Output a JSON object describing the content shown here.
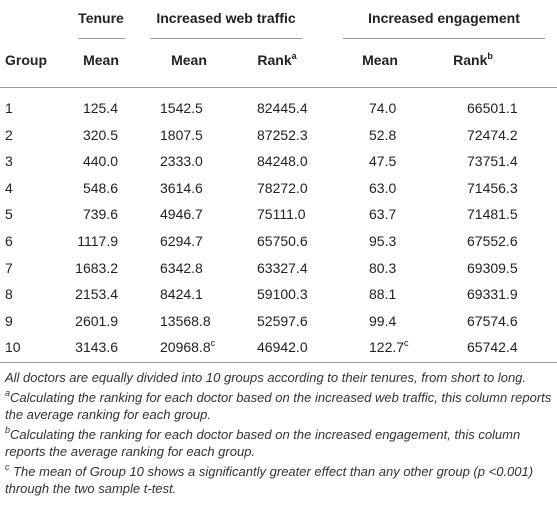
{
  "table": {
    "header_groups": [
      "Tenure",
      "Increased web traffic",
      "Increased engagement"
    ],
    "columns": [
      {
        "label": "Group"
      },
      {
        "label": "Mean"
      },
      {
        "label": "Mean"
      },
      {
        "label": "Rank",
        "sup": "a"
      },
      {
        "label": "Mean"
      },
      {
        "label": "Rank",
        "sup": "b"
      }
    ],
    "rows": [
      [
        "1",
        "125.4",
        "1542.5",
        "82445.4",
        "74.0",
        "66501.1"
      ],
      [
        "2",
        "320.5",
        "1807.5",
        "87252.3",
        "52.8",
        "72474.2"
      ],
      [
        "3",
        "440.0",
        "2333.0",
        "84248.0",
        "47.5",
        "73751.4"
      ],
      [
        "4",
        "548.6",
        "3614.6",
        "78272.0",
        "63.0",
        "71456.3"
      ],
      [
        "5",
        "739.6",
        "4946.7",
        "75111.0",
        "63.7",
        "71481.5"
      ],
      [
        "6",
        "1117.9",
        "6294.7",
        "65750.6",
        "95.3",
        "67552.6"
      ],
      [
        "7",
        "1683.2",
        "6342.8",
        "63327.4",
        "80.3",
        "69309.5"
      ],
      [
        "8",
        "2153.4",
        "8424.1",
        "59100.3",
        "88.1",
        "69331.9"
      ],
      [
        "9",
        "2601.9",
        "13568.8",
        "52597.6",
        "99.4",
        "67574.6"
      ],
      [
        "10",
        "3143.6",
        {
          "text": "20968.8",
          "sup": "c"
        },
        "46942.0",
        {
          "text": "122.7",
          "sup": "c"
        },
        "65742.4"
      ]
    ]
  },
  "footnotes": [
    {
      "text": "All doctors are equally divided into 10 groups according to their tenures, from short to long."
    },
    {
      "mark": "a",
      "text": "Calculating the ranking for each doctor based on the increased web traffic, this column reports the average ranking for each group."
    },
    {
      "mark": "b",
      "text": "Calculating the ranking for each doctor based on the increased engagement, this column reports the average ranking for each group."
    },
    {
      "mark": "c",
      "text": " The mean of Group 10 shows a significantly greater effect than any other group (p <0.001) through the two sample t-test."
    }
  ]
}
